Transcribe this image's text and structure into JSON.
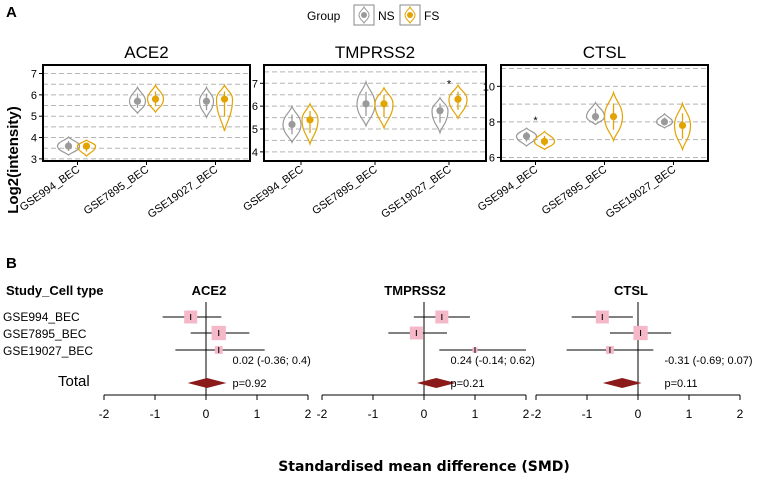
{
  "colors": {
    "NS": "#9a9a9a",
    "FS": "#e3a300",
    "forest_box": "#f4b8c8",
    "diamond": "#8b1a1a"
  },
  "panel_a": {
    "label": "A"
  },
  "panel_b": {
    "label": "B"
  },
  "legend": {
    "title": "Group",
    "items": [
      {
        "name": "NS",
        "color": "#9a9a9a"
      },
      {
        "name": "FS",
        "color": "#e3a300"
      }
    ]
  },
  "chart_data": [
    {
      "type": "violin",
      "title": "ACE2",
      "ylabel": "Log2(intensity)",
      "ylim": [
        2.9,
        7.4
      ],
      "yticks": [
        3,
        4,
        5,
        6,
        7
      ],
      "categories": [
        "GSE994_BEC",
        "GSE7895_BEC",
        "GSE19027_BEC"
      ],
      "series": [
        {
          "name": "NS",
          "median": [
            3.6,
            5.7,
            5.7
          ]
        },
        {
          "name": "FS",
          "median": [
            3.6,
            5.8,
            5.8
          ]
        }
      ],
      "significance": []
    },
    {
      "type": "violin",
      "title": "TMPRSS2",
      "ylim": [
        3.6,
        7.8
      ],
      "yticks": [
        4,
        5,
        6,
        7
      ],
      "categories": [
        "GSE994_BEC",
        "GSE7895_BEC",
        "GSE19027_BEC"
      ],
      "series": [
        {
          "name": "NS",
          "median": [
            5.2,
            6.1,
            5.8
          ]
        },
        {
          "name": "FS",
          "median": [
            5.4,
            6.1,
            6.3
          ]
        }
      ],
      "significance": [
        "",
        "",
        "*"
      ]
    },
    {
      "type": "violin",
      "title": "CTSL",
      "ylim": [
        5.8,
        11.2
      ],
      "yticks": [
        6,
        8,
        10
      ],
      "categories": [
        "GSE994_BEC",
        "GSE7895_BEC",
        "GSE19027_BEC"
      ],
      "series": [
        {
          "name": "NS",
          "median": [
            7.2,
            8.3,
            8.0
          ]
        },
        {
          "name": "FS",
          "median": [
            6.9,
            8.3,
            7.8
          ]
        }
      ],
      "significance": [
        "*",
        "",
        ""
      ]
    },
    {
      "type": "forest",
      "xlabel": "Standardised mean difference (SMD)",
      "header": "Study_Cell type",
      "total_label": "Total",
      "studies": [
        "GSE994_BEC",
        "GSE7895_BEC",
        "GSE19027_BEC"
      ],
      "xlim": [
        -2,
        2
      ],
      "xticks": [
        "-2",
        "-1",
        "0",
        "1",
        "2"
      ],
      "genes": [
        {
          "name": "ACE2",
          "studies": [
            {
              "smd": -0.3,
              "lo": -0.85,
              "hi": 0.3,
              "weight": 1.0
            },
            {
              "smd": 0.25,
              "lo": -0.3,
              "hi": 0.85,
              "weight": 1.1
            },
            {
              "smd": 0.25,
              "lo": -0.6,
              "hi": 1.15,
              "weight": 0.6
            }
          ],
          "total": {
            "smd": 0.02,
            "lo": -0.36,
            "hi": 0.4
          },
          "ci_text": "0.02 (-0.36; 0.4)",
          "p_text": "p=0.92"
        },
        {
          "name": "TMPRSS2",
          "studies": [
            {
              "smd": 0.35,
              "lo": -0.2,
              "hi": 0.9,
              "weight": 1.0
            },
            {
              "smd": -0.15,
              "lo": -0.7,
              "hi": 0.45,
              "weight": 1.0
            },
            {
              "smd": 1.0,
              "lo": 0.3,
              "hi": 2.0,
              "weight": 0.4
            }
          ],
          "total": {
            "smd": 0.24,
            "lo": -0.14,
            "hi": 0.62
          },
          "ci_text": "0.24 (-0.14; 0.62)",
          "p_text": "p=0.21"
        },
        {
          "name": "CTSL",
          "studies": [
            {
              "smd": -0.7,
              "lo": -1.3,
              "hi": -0.1,
              "weight": 1.0
            },
            {
              "smd": 0.05,
              "lo": -0.55,
              "hi": 0.65,
              "weight": 1.1
            },
            {
              "smd": -0.55,
              "lo": -1.4,
              "hi": 0.3,
              "weight": 0.6
            }
          ],
          "total": {
            "smd": -0.31,
            "lo": -0.69,
            "hi": 0.07
          },
          "ci_text": "-0.31 (-0.69; 0.07)",
          "p_text": "p=0.11"
        }
      ]
    }
  ]
}
